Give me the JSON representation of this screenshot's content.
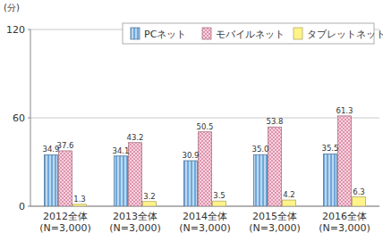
{
  "chart_data": {
    "type": "bar",
    "y_label": "(分)",
    "categories": [
      "2012全体\n(N=3,000)",
      "2013全体\n(N=3,000)",
      "2014全体\n(N=3,000)",
      "2015全体\n(N=3,000)",
      "2016全体\n(N=3,000)"
    ],
    "series": [
      {
        "name": "PCネット",
        "color": "#6fa8dc",
        "values": [
          34.9,
          34.1,
          30.9,
          35.0,
          35.5
        ],
        "value_labels": [
          "34.9",
          "34.1",
          "30.9",
          "35.0",
          "35.5"
        ]
      },
      {
        "name": "モバイルネット",
        "color": "#f4a6c0",
        "values": [
          37.6,
          43.2,
          50.5,
          53.8,
          61.3
        ]
      },
      {
        "name": "タブレットネット",
        "color": "#fff38a",
        "values": [
          1.3,
          3.2,
          3.5,
          4.2,
          6.3
        ]
      }
    ],
    "ylim": [
      0,
      120
    ],
    "yticks": [
      0,
      60,
      120
    ],
    "grid": true,
    "legend": "top-right",
    "data_labels": true
  }
}
